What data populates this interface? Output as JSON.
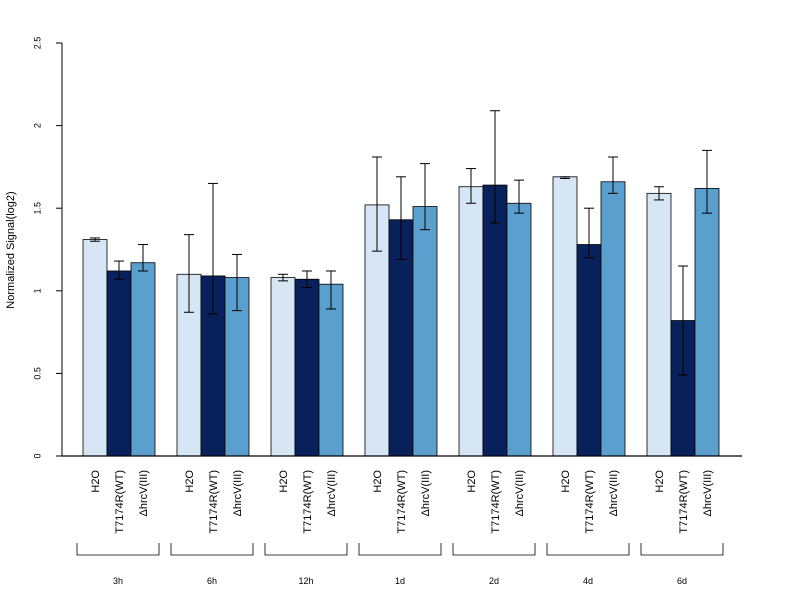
{
  "chart_data": {
    "type": "bar",
    "title": "",
    "ylabel": "Normalized Signal(log2)",
    "xlabel": "",
    "ylim": [
      0,
      2.5
    ],
    "yticks": [
      "0",
      "0.5",
      "1",
      "1.5",
      "2",
      "2.5"
    ],
    "ytick_values": [
      0,
      0.5,
      1,
      1.5,
      2,
      2.5
    ],
    "categories": [
      "3h",
      "6h",
      "12h",
      "1d",
      "2d",
      "4d",
      "6d"
    ],
    "series": [
      {
        "name": "H2O",
        "color": "#d6e6f4",
        "values": [
          1.31,
          1.1,
          1.08,
          1.52,
          1.63,
          1.69,
          1.59
        ],
        "err_low": [
          1.3,
          0.87,
          1.06,
          1.24,
          1.53,
          1.68,
          1.55
        ],
        "err_high": [
          1.32,
          1.34,
          1.1,
          1.81,
          1.74,
          1.69,
          1.63
        ]
      },
      {
        "name": "T7174R(WT)",
        "color": "#08215a",
        "values": [
          1.12,
          1.09,
          1.07,
          1.43,
          1.64,
          1.28,
          0.82
        ],
        "err_low": [
          1.07,
          0.86,
          1.02,
          1.19,
          1.41,
          1.2,
          0.49
        ],
        "err_high": [
          1.18,
          1.65,
          1.12,
          1.69,
          2.09,
          1.5,
          1.15
        ]
      },
      {
        "name": "ΔhrcV(III)",
        "color": "#5b9fcf",
        "values": [
          1.17,
          1.08,
          1.04,
          1.51,
          1.53,
          1.66,
          1.62
        ],
        "err_low": [
          1.12,
          0.88,
          0.89,
          1.37,
          1.47,
          1.59,
          1.47
        ],
        "err_high": [
          1.28,
          1.22,
          1.12,
          1.77,
          1.67,
          1.81,
          1.85
        ]
      }
    ]
  }
}
